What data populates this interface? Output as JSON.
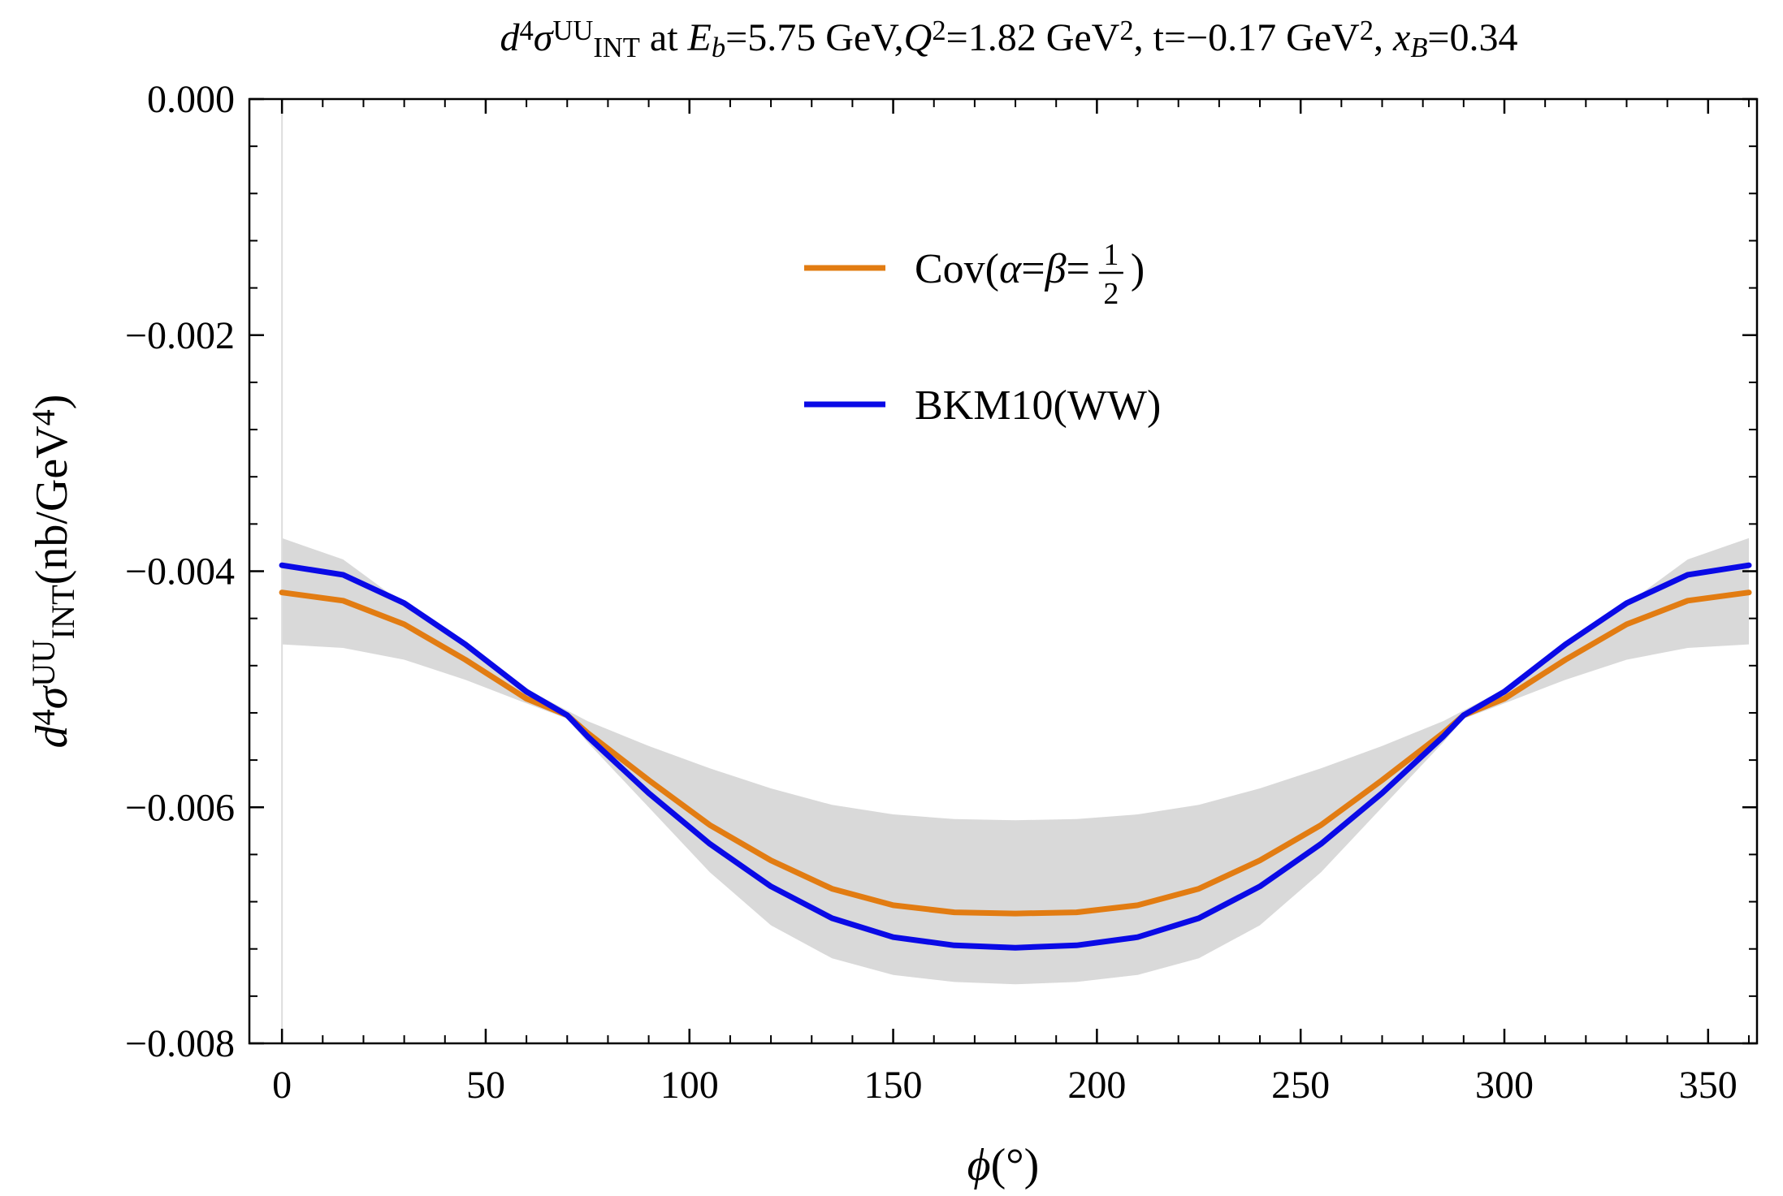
{
  "chart_data": {
    "type": "line",
    "title": {
      "parts": [
        {
          "text": "d",
          "style": "italic"
        },
        {
          "text": "4",
          "style": "sup"
        },
        {
          "text": "σ",
          "style": "italic"
        },
        {
          "text": "UU",
          "style": "sup"
        },
        {
          "text": "INT",
          "style": "sub"
        },
        {
          "text": " at ",
          "style": "normal"
        },
        {
          "text": "E",
          "style": "italic"
        },
        {
          "text": "b",
          "style": "sub-italic"
        },
        {
          "text": "=5.75 GeV,",
          "style": "normal"
        },
        {
          "text": "Q",
          "style": "italic"
        },
        {
          "text": "2",
          "style": "sup"
        },
        {
          "text": "=1.82 GeV",
          "style": "normal"
        },
        {
          "text": "2",
          "style": "sup"
        },
        {
          "text": ", t=−0.17 GeV",
          "style": "normal"
        },
        {
          "text": "2",
          "style": "sup"
        },
        {
          "text": ", ",
          "style": "normal"
        },
        {
          "text": "x",
          "style": "italic"
        },
        {
          "text": "B",
          "style": "sub-italic"
        },
        {
          "text": "=0.34",
          "style": "normal"
        }
      ]
    },
    "xlabel": {
      "parts": [
        {
          "text": "ϕ",
          "style": "italic"
        },
        {
          "text": "(°)",
          "style": "normal"
        }
      ]
    },
    "ylabel": {
      "parts": [
        {
          "text": "d",
          "style": "italic"
        },
        {
          "text": "4",
          "style": "sup"
        },
        {
          "text": "σ",
          "style": "italic"
        },
        {
          "text": "UU",
          "style": "sup"
        },
        {
          "text": "INT",
          "style": "sub"
        },
        {
          "text": "(nb/GeV",
          "style": "normal"
        },
        {
          "text": "4",
          "style": "sup"
        },
        {
          "text": ")",
          "style": "normal"
        }
      ]
    },
    "xlim": [
      -8,
      362
    ],
    "ylim": [
      -0.008,
      0.0
    ],
    "xticks": [
      0,
      50,
      100,
      150,
      200,
      250,
      300,
      350
    ],
    "xtick_labels": [
      "0",
      "50",
      "100",
      "150",
      "200",
      "250",
      "300",
      "350"
    ],
    "yticks": [
      0.0,
      -0.002,
      -0.004,
      -0.006,
      -0.008
    ],
    "ytick_labels": [
      "0.000",
      "−0.002",
      "−0.004",
      "−0.006",
      "−0.008"
    ],
    "x": [
      0,
      15,
      30,
      45,
      60,
      70,
      75,
      90,
      105,
      120,
      135,
      150,
      165,
      180,
      195,
      210,
      225,
      240,
      255,
      270,
      285,
      290,
      300,
      315,
      330,
      345,
      360
    ],
    "series": [
      {
        "name": "Cov(α=β=1/2)",
        "color": "#e27c12",
        "values": [
          -0.00418,
          -0.00425,
          -0.00445,
          -0.00475,
          -0.00508,
          -0.00522,
          -0.00537,
          -0.00577,
          -0.00615,
          -0.00645,
          -0.00669,
          -0.00683,
          -0.00689,
          -0.0069,
          -0.00689,
          -0.00683,
          -0.00669,
          -0.00645,
          -0.00615,
          -0.00577,
          -0.00537,
          -0.00522,
          -0.00508,
          -0.00475,
          -0.00445,
          -0.00425,
          -0.00418
        ]
      },
      {
        "name": "BKM10(WW)",
        "color": "#0a0ae6",
        "values": [
          -0.00395,
          -0.00403,
          -0.00427,
          -0.00462,
          -0.00502,
          -0.00522,
          -0.0054,
          -0.00588,
          -0.00631,
          -0.00667,
          -0.00694,
          -0.0071,
          -0.00717,
          -0.00719,
          -0.00717,
          -0.0071,
          -0.00694,
          -0.00667,
          -0.00631,
          -0.00588,
          -0.0054,
          -0.00522,
          -0.00502,
          -0.00462,
          -0.00427,
          -0.00403,
          -0.00395
        ]
      }
    ],
    "band": {
      "name": "uncertainty band",
      "color": "#d9d9d9",
      "upper": [
        -0.00372,
        -0.0039,
        -0.00428,
        -0.00463,
        -0.005,
        -0.00518,
        -0.00527,
        -0.00548,
        -0.00567,
        -0.00584,
        -0.00598,
        -0.00606,
        -0.0061,
        -0.00611,
        -0.0061,
        -0.00606,
        -0.00598,
        -0.00584,
        -0.00567,
        -0.00548,
        -0.00527,
        -0.00518,
        -0.005,
        -0.00463,
        -0.00428,
        -0.0039,
        -0.00372
      ],
      "lower": [
        -0.00462,
        -0.00465,
        -0.00475,
        -0.00492,
        -0.00512,
        -0.00525,
        -0.00545,
        -0.006,
        -0.00655,
        -0.007,
        -0.00728,
        -0.00742,
        -0.00748,
        -0.0075,
        -0.00748,
        -0.00742,
        -0.00728,
        -0.007,
        -0.00655,
        -0.006,
        -0.00545,
        -0.00525,
        -0.00512,
        -0.00492,
        -0.00475,
        -0.00465,
        -0.00462
      ]
    },
    "legend": {
      "placement": "upper-center",
      "entries": [
        {
          "series": 0,
          "parts": [
            {
              "text": "Cov(",
              "style": "normal"
            },
            {
              "text": "α",
              "style": "italic"
            },
            {
              "text": "=",
              "style": "normal"
            },
            {
              "text": "β",
              "style": "italic"
            },
            {
              "text": "=",
              "style": "normal"
            },
            {
              "frac": [
                "1",
                "2"
              ]
            },
            {
              "text": ")",
              "style": "normal"
            }
          ]
        },
        {
          "series": 1,
          "parts": [
            {
              "text": "BKM10(WW)",
              "style": "normal"
            }
          ]
        }
      ]
    },
    "grid": false,
    "frame": true
  }
}
